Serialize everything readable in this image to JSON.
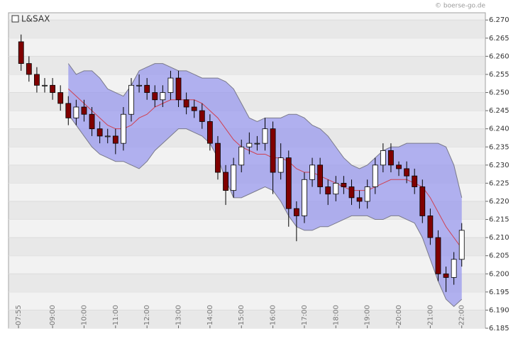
{
  "chart_data": {
    "type": "candlestick",
    "title": "L&SAX",
    "source": "© boerse-go.de",
    "x": [
      8,
      8.25,
      8.5,
      8.75,
      9,
      9.25,
      9.5,
      9.75,
      10,
      10.25,
      10.5,
      10.75,
      11,
      11.25,
      11.5,
      11.75,
      12,
      12.25,
      12.5,
      12.75,
      13,
      13.25,
      13.5,
      13.75,
      14,
      14.25,
      14.5,
      14.75,
      15,
      15.25,
      15.5,
      15.75,
      16,
      16.25,
      16.5,
      16.75,
      17,
      17.25,
      17.5,
      17.75,
      18,
      18.25,
      18.5,
      18.75,
      19,
      19.25,
      19.5,
      19.75,
      20,
      20.25,
      20.5,
      20.75,
      21,
      21.25,
      21.5,
      21.75,
      22
    ],
    "open": [
      6.264,
      6.258,
      6.255,
      6.252,
      6.252,
      6.25,
      6.247,
      6.243,
      6.246,
      6.244,
      6.24,
      6.238,
      6.238,
      6.236,
      6.244,
      6.252,
      6.252,
      6.25,
      6.248,
      6.25,
      6.254,
      6.248,
      6.246,
      6.245,
      6.242,
      6.236,
      6.228,
      6.223,
      6.23,
      6.235,
      6.236,
      6.236,
      6.24,
      6.228,
      6.232,
      6.218,
      6.216,
      6.226,
      6.23,
      6.224,
      6.222,
      6.225,
      6.224,
      6.221,
      6.22,
      6.224,
      6.23,
      6.234,
      6.23,
      6.229,
      6.227,
      6.224,
      6.216,
      6.21,
      6.2,
      6.199,
      6.204
    ],
    "high": [
      6.266,
      6.26,
      6.257,
      6.254,
      6.254,
      6.252,
      6.249,
      6.248,
      6.248,
      6.246,
      6.242,
      6.24,
      6.24,
      6.246,
      6.254,
      6.255,
      6.254,
      6.252,
      6.252,
      6.256,
      6.256,
      6.25,
      6.248,
      6.247,
      6.244,
      6.238,
      6.23,
      6.232,
      6.237,
      6.239,
      6.238,
      6.243,
      6.242,
      6.236,
      6.234,
      6.22,
      6.228,
      6.232,
      6.232,
      6.226,
      6.227,
      6.227,
      6.226,
      6.223,
      6.226,
      6.232,
      6.236,
      6.236,
      6.231,
      6.231,
      6.229,
      6.226,
      6.218,
      6.212,
      6.202,
      6.206,
      6.214
    ],
    "low": [
      6.256,
      6.253,
      6.25,
      6.25,
      6.248,
      6.245,
      6.241,
      6.241,
      6.242,
      6.238,
      6.236,
      6.236,
      6.233,
      6.234,
      6.242,
      6.25,
      6.248,
      6.246,
      6.246,
      6.248,
      6.246,
      6.244,
      6.243,
      6.24,
      6.234,
      6.226,
      6.219,
      6.221,
      6.228,
      6.233,
      6.234,
      6.234,
      6.222,
      6.226,
      6.213,
      6.209,
      6.214,
      6.224,
      6.222,
      6.219,
      6.22,
      6.222,
      6.219,
      6.218,
      6.218,
      6.222,
      6.228,
      6.228,
      6.227,
      6.225,
      6.222,
      6.214,
      6.208,
      6.198,
      6.195,
      6.197,
      6.202
    ],
    "close": [
      6.258,
      6.255,
      6.252,
      6.252,
      6.25,
      6.247,
      6.243,
      6.246,
      6.244,
      6.24,
      6.238,
      6.238,
      6.236,
      6.244,
      6.252,
      6.252,
      6.25,
      6.248,
      6.25,
      6.254,
      6.248,
      6.246,
      6.245,
      6.242,
      6.236,
      6.228,
      6.223,
      6.23,
      6.235,
      6.236,
      6.236,
      6.24,
      6.228,
      6.232,
      6.218,
      6.216,
      6.226,
      6.23,
      6.224,
      6.222,
      6.225,
      6.224,
      6.221,
      6.22,
      6.224,
      6.23,
      6.234,
      6.23,
      6.229,
      6.227,
      6.224,
      6.216,
      6.21,
      6.2,
      6.199,
      6.204,
      6.212
    ],
    "upper": [
      null,
      null,
      null,
      null,
      null,
      null,
      6.258,
      6.255,
      6.256,
      6.256,
      6.254,
      6.251,
      6.25,
      6.249,
      6.252,
      6.256,
      6.257,
      6.258,
      6.258,
      6.257,
      6.256,
      6.256,
      6.255,
      6.254,
      6.254,
      6.254,
      6.253,
      6.251,
      6.247,
      6.243,
      6.242,
      6.243,
      6.243,
      6.243,
      6.244,
      6.244,
      6.243,
      6.241,
      6.24,
      6.238,
      6.235,
      6.232,
      6.23,
      6.229,
      6.23,
      6.232,
      6.234,
      6.235,
      6.235,
      6.236,
      6.236,
      6.236,
      6.236,
      6.236,
      6.235,
      6.23,
      6.221
    ],
    "middle": [
      null,
      null,
      null,
      null,
      null,
      null,
      6.251,
      6.249,
      6.247,
      6.245,
      6.243,
      6.241,
      6.24,
      6.24,
      6.241,
      6.243,
      6.244,
      6.246,
      6.247,
      6.248,
      6.248,
      6.248,
      6.248,
      6.247,
      6.245,
      6.243,
      6.24,
      6.237,
      6.235,
      6.234,
      6.233,
      6.233,
      6.232,
      6.232,
      6.231,
      6.229,
      6.228,
      6.228,
      6.227,
      6.226,
      6.225,
      6.224,
      6.223,
      6.223,
      6.223,
      6.224,
      6.225,
      6.226,
      6.226,
      6.226,
      6.225,
      6.224,
      6.221,
      6.217,
      6.213,
      6.21,
      6.207
    ],
    "lower": [
      null,
      null,
      null,
      null,
      null,
      null,
      6.244,
      6.241,
      6.238,
      6.235,
      6.233,
      6.232,
      6.231,
      6.231,
      6.23,
      6.229,
      6.231,
      6.234,
      6.236,
      6.238,
      6.24,
      6.24,
      6.239,
      6.238,
      6.236,
      6.232,
      6.226,
      6.221,
      6.221,
      6.222,
      6.223,
      6.224,
      6.223,
      6.22,
      6.216,
      6.213,
      6.212,
      6.212,
      6.213,
      6.213,
      6.214,
      6.215,
      6.216,
      6.216,
      6.216,
      6.215,
      6.215,
      6.216,
      6.216,
      6.215,
      6.214,
      6.21,
      6.204,
      6.198,
      6.193,
      6.191,
      6.193
    ],
    "up_color": "#ffffff",
    "down_color": "#800000",
    "band_color": "#9a9aee",
    "middle_color": "#d04050",
    "xlim": [
      7.6,
      22.75
    ],
    "ylim": [
      6.185,
      6.272
    ],
    "xticks": [
      {
        "value": 7.9167,
        "label": "07:55"
      },
      {
        "value": 9,
        "label": "09:00"
      },
      {
        "value": 10,
        "label": "10:00"
      },
      {
        "value": 11,
        "label": "11:00"
      },
      {
        "value": 12,
        "label": "12:00"
      },
      {
        "value": 13,
        "label": "13:00"
      },
      {
        "value": 14,
        "label": "14:00"
      },
      {
        "value": 15,
        "label": "15:00"
      },
      {
        "value": 16,
        "label": "16:00"
      },
      {
        "value": 17,
        "label": "17:00"
      },
      {
        "value": 18,
        "label": "18:00"
      },
      {
        "value": 19,
        "label": "19:00"
      },
      {
        "value": 20,
        "label": "20:00"
      },
      {
        "value": 21,
        "label": "21:00"
      },
      {
        "value": 22,
        "label": "22:00"
      }
    ],
    "yticks": [
      {
        "value": 6.185,
        "label": "6.185"
      },
      {
        "value": 6.19,
        "label": "6.190"
      },
      {
        "value": 6.195,
        "label": "6.195"
      },
      {
        "value": 6.2,
        "label": "6.200"
      },
      {
        "value": 6.205,
        "label": "6.205"
      },
      {
        "value": 6.21,
        "label": "6.210"
      },
      {
        "value": 6.215,
        "label": "6.215"
      },
      {
        "value": 6.22,
        "label": "6.220"
      },
      {
        "value": 6.225,
        "label": "6.225"
      },
      {
        "value": 6.23,
        "label": "6.230"
      },
      {
        "value": 6.235,
        "label": "6.235"
      },
      {
        "value": 6.24,
        "label": "6.240"
      },
      {
        "value": 6.245,
        "label": "6.245"
      },
      {
        "value": 6.25,
        "label": "6.250"
      },
      {
        "value": 6.255,
        "label": "6.255"
      },
      {
        "value": 6.26,
        "label": "6.260"
      },
      {
        "value": 6.265,
        "label": "6.265"
      },
      {
        "value": 6.27,
        "label": "6.270"
      }
    ],
    "grid": true
  }
}
